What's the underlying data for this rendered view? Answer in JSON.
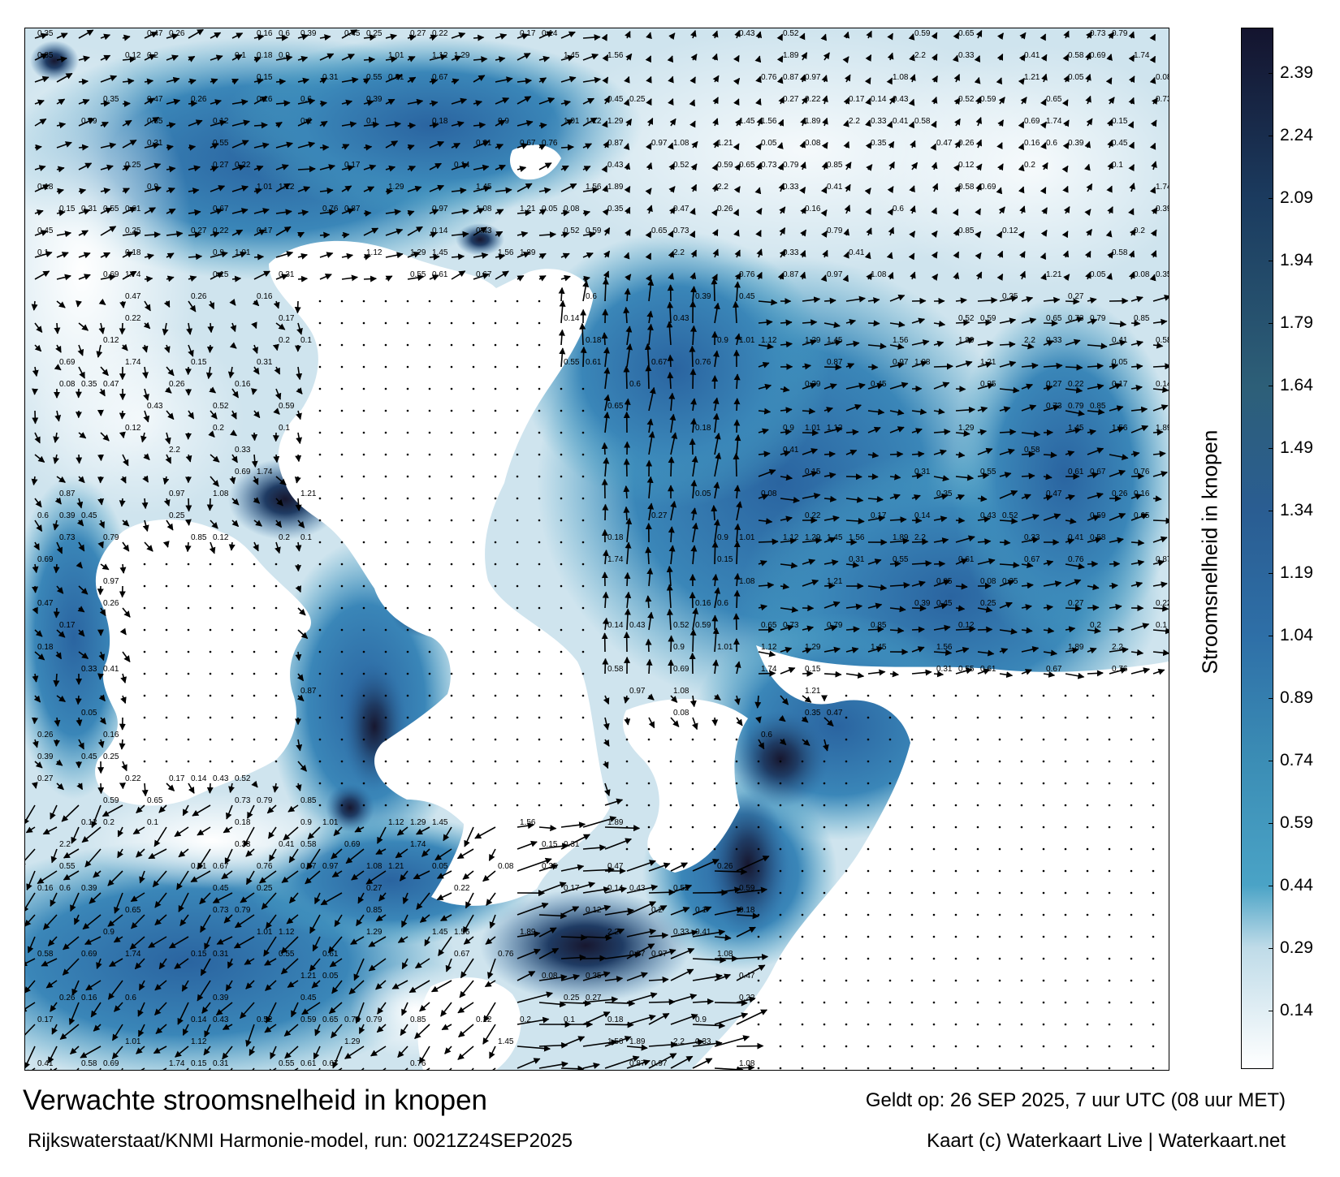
{
  "title": "Verwachte stroomsnelheid in knopen",
  "model_run": "Rijkswaterstaat/KNMI Harmonie-model, run: 0021Z24SEP2025",
  "valid_time": "Geldt op: 26 SEP 2025, 7 uur UTC (08 uur MET)",
  "credit": "Kaart (c) Waterkaart Live | Waterkaart.net",
  "colorbar": {
    "label": "Stroomsnelheid in knopen",
    "ticks": [
      "2.39",
      "2.24",
      "2.09",
      "1.94",
      "1.79",
      "1.64",
      "1.49",
      "1.34",
      "1.19",
      "1.04",
      "0.89",
      "0.74",
      "0.59",
      "0.44",
      "0.29",
      "0.14"
    ],
    "tick_values": [
      2.39,
      2.24,
      2.09,
      1.94,
      1.79,
      1.64,
      1.49,
      1.34,
      1.19,
      1.04,
      0.89,
      0.74,
      0.59,
      0.44,
      0.29,
      0.14
    ],
    "range": [
      0,
      2.5
    ],
    "stops": [
      {
        "value": 0.0,
        "color": "#ffffff"
      },
      {
        "value": 0.29,
        "color": "#bfdbe8"
      },
      {
        "value": 0.44,
        "color": "#4aa3c6"
      },
      {
        "value": 0.74,
        "color": "#3b8db5"
      },
      {
        "value": 1.04,
        "color": "#2e6fa7"
      },
      {
        "value": 1.34,
        "color": "#2a5d92"
      },
      {
        "value": 1.64,
        "color": "#2d5f78"
      },
      {
        "value": 2.09,
        "color": "#1b3b5f"
      },
      {
        "value": 2.5,
        "color": "#14142e"
      }
    ]
  },
  "colors": {
    "land": "#ffffff",
    "sea_low": "#d6e8f1",
    "sea_mid": "#4d9cc3",
    "sea_high": "#2c5e97",
    "sea_max": "#17172f",
    "arrow": "#000000"
  },
  "speed_labels": [
    "0.35",
    "0.47",
    "0.26",
    "0.16",
    "0.6",
    "0.39",
    "0.45",
    "0.25",
    "0.27",
    "0.22",
    "0.17",
    "0.14",
    "0.43",
    "0.52",
    "0.59",
    "0.65",
    "0.73",
    "0.79",
    "0.85",
    "0.12",
    "0.2",
    "0.1",
    "0.18",
    "0.9",
    "1.01",
    "1.12",
    "1.29",
    "1.45",
    "1.56",
    "1.89",
    "2.2",
    "0.33",
    "0.41",
    "0.58",
    "0.69",
    "1.74",
    "0.15",
    "0.31",
    "0.55",
    "0.61",
    "0.67",
    "0.76",
    "0.87",
    "0.97",
    "1.08",
    "1.21",
    "0.05",
    "0.08"
  ]
}
